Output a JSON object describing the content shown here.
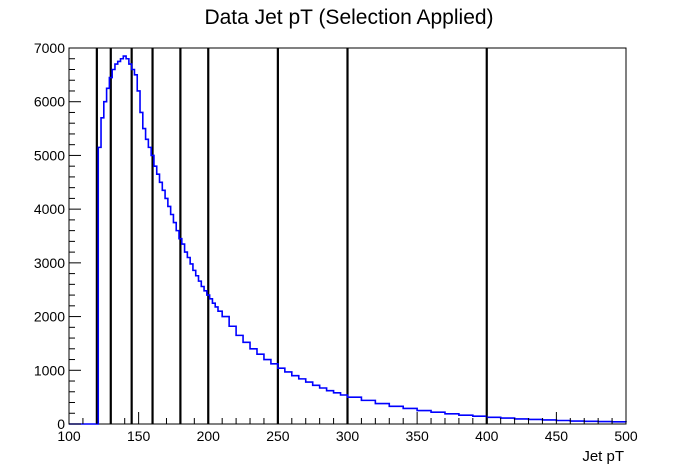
{
  "chart_data": {
    "type": "line",
    "title": "Data Jet pT (Selection Applied)",
    "xlabel": "Jet pT",
    "ylabel": "",
    "xlim": [
      100,
      500
    ],
    "ylim": [
      0,
      7000
    ],
    "x_ticks": [
      100,
      150,
      200,
      250,
      300,
      350,
      400,
      450,
      500
    ],
    "x_tick_labels": [
      "100",
      "150",
      "200",
      "250",
      "300",
      "350",
      "400",
      "450",
      "500"
    ],
    "y_ticks": [
      0,
      1000,
      2000,
      3000,
      4000,
      5000,
      6000,
      7000
    ],
    "y_tick_labels": [
      "0",
      "1000",
      "2000",
      "3000",
      "4000",
      "5000",
      "6000",
      "7000"
    ],
    "series": [
      {
        "color": "#0000ff",
        "x": [
          100,
          120,
          121,
          123,
          125,
          127,
          129,
          131,
          133,
          135,
          137,
          139,
          141,
          143,
          145,
          147,
          149,
          151,
          153,
          155,
          157,
          159,
          161,
          163,
          165,
          167,
          169,
          171,
          173,
          175,
          177,
          179,
          181,
          183,
          185,
          187,
          189,
          191,
          193,
          195,
          197,
          199,
          201,
          203,
          205,
          207,
          210,
          215,
          220,
          225,
          230,
          235,
          240,
          245,
          250,
          255,
          260,
          265,
          270,
          275,
          280,
          285,
          290,
          295,
          300,
          310,
          320,
          330,
          340,
          350,
          360,
          370,
          380,
          390,
          400,
          410,
          420,
          430,
          440,
          450,
          460,
          470,
          480,
          490,
          500
        ],
        "y": [
          0,
          0,
          5150,
          5700,
          6000,
          6250,
          6450,
          6600,
          6700,
          6750,
          6800,
          6850,
          6800,
          6700,
          6600,
          6500,
          6200,
          5800,
          5500,
          5300,
          5150,
          5000,
          4800,
          4650,
          4500,
          4350,
          4200,
          4050,
          3900,
          3750,
          3600,
          3450,
          3350,
          3200,
          3100,
          2980,
          2860,
          2760,
          2660,
          2560,
          2480,
          2400,
          2330,
          2250,
          2180,
          2100,
          2000,
          1820,
          1650,
          1520,
          1400,
          1300,
          1200,
          1120,
          1040,
          970,
          900,
          840,
          780,
          720,
          670,
          620,
          580,
          540,
          500,
          440,
          380,
          330,
          290,
          250,
          220,
          190,
          165,
          145,
          125,
          110,
          95,
          85,
          75,
          65,
          55,
          50,
          45,
          40,
          35
        ]
      }
    ],
    "vertical_lines_x": [
      120,
      130,
      145,
      160,
      180,
      200,
      250,
      300,
      400
    ],
    "grid": false,
    "colors": {
      "series_line": "#0000ff",
      "marker_lines": "#000000",
      "axes": "#000000"
    }
  }
}
